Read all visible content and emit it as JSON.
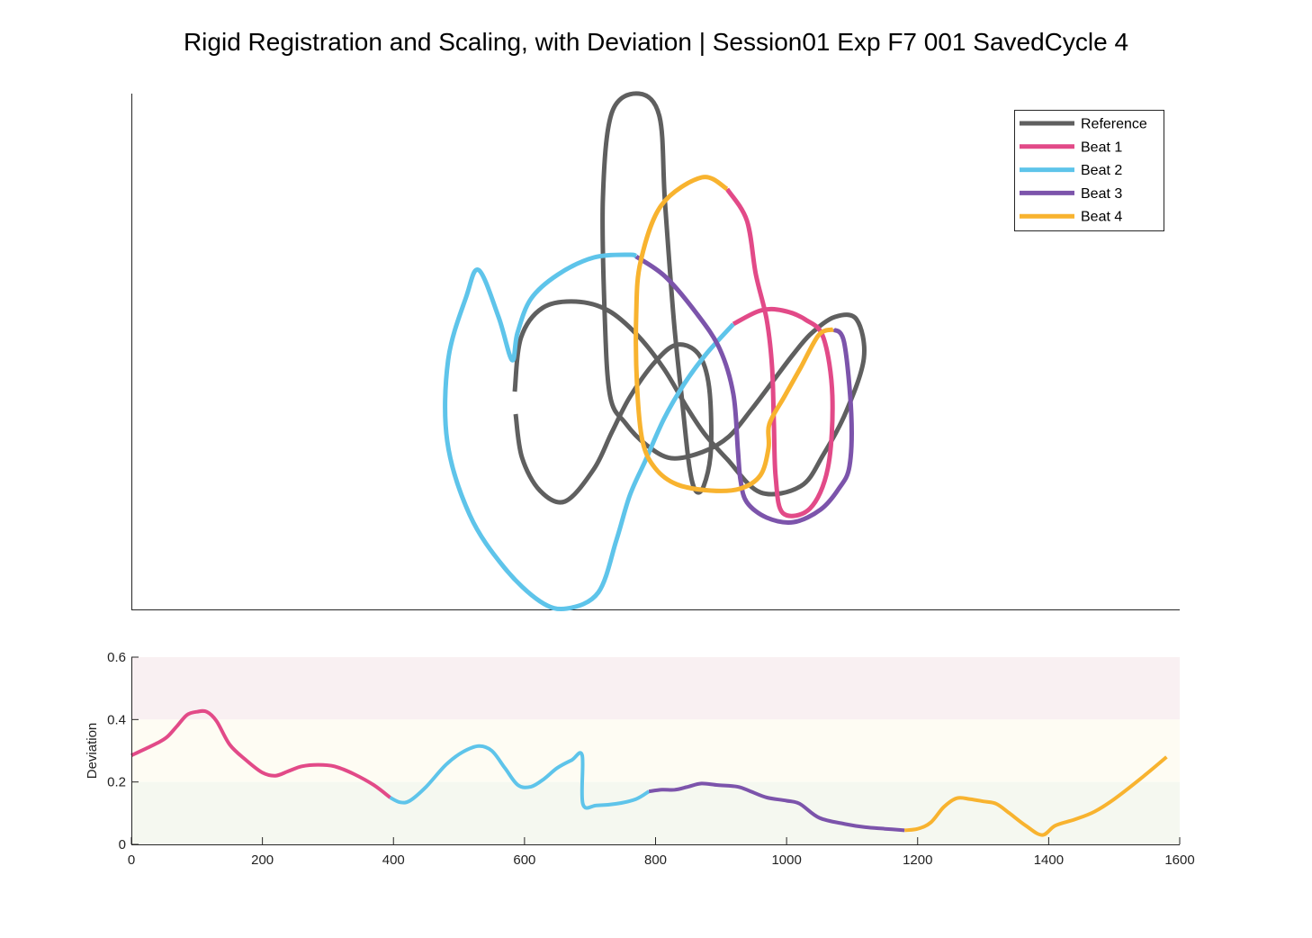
{
  "title": "Rigid Registration and Scaling, with Deviation | Session01 Exp F7 001 SavedCycle 4",
  "colors": {
    "reference": "#5f5f5f",
    "beat1": "#e24a88",
    "beat2": "#5ec4ea",
    "beat3": "#7c54ab",
    "beat4": "#f8b32f",
    "band_high": "#f9f0f2",
    "band_mid": "#fefcf3",
    "band_low": "#f5f8f0"
  },
  "chart_data": [
    {
      "type": "line",
      "panel": "trajectory",
      "title": "",
      "xlabel": "",
      "ylabel": "",
      "axes_ticks_shown": false,
      "legend": {
        "placement": "top-right",
        "entries": [
          "Reference",
          "Beat 1",
          "Beat 2",
          "Beat 3",
          "Beat 4"
        ]
      },
      "series": [
        {
          "name": "Reference",
          "points": [
            [
              572,
              435
            ],
            [
              579,
              375
            ],
            [
              603,
              342
            ],
            [
              640,
              335
            ],
            [
              676,
              345
            ],
            [
              709,
              373
            ],
            [
              738,
              410
            ],
            [
              763,
              452
            ],
            [
              783,
              482
            ],
            [
              808,
              510
            ],
            [
              845,
              547
            ],
            [
              890,
              540
            ],
            [
              915,
              505
            ],
            [
              940,
              458
            ],
            [
              960,
              398
            ],
            [
              952,
              355
            ],
            [
              928,
              352
            ],
            [
              902,
              370
            ],
            [
              882,
              393
            ],
            [
              860,
              422
            ],
            [
              835,
              455
            ],
            [
              810,
              485
            ],
            [
              781,
              502
            ],
            [
              746,
              509
            ],
            [
              718,
              494
            ],
            [
              695,
              470
            ],
            [
              678,
              440
            ],
            [
              672,
              350
            ],
            [
              670,
              220
            ],
            [
              680,
              125
            ],
            [
              710,
              104
            ],
            [
              733,
              130
            ],
            [
              739,
              225
            ],
            [
              749,
              358
            ],
            [
              758,
              445
            ],
            [
              766,
              518
            ],
            [
              773,
              545
            ],
            [
              782,
              540
            ],
            [
              790,
              500
            ],
            [
              788,
              430
            ],
            [
              776,
              393
            ],
            [
              752,
              383
            ],
            [
              728,
              402
            ],
            [
              700,
              441
            ],
            [
              680,
              480
            ],
            [
              660,
              521
            ],
            [
              628,
              557
            ],
            [
              600,
              545
            ],
            [
              580,
              508
            ],
            [
              573,
              460
            ]
          ]
        },
        {
          "name": "Beat 1",
          "points": [
            [
              808,
              210
            ],
            [
              830,
              245
            ],
            [
              840,
              305
            ],
            [
              852,
              355
            ],
            [
              858,
              408
            ],
            [
              860,
              470
            ],
            [
              862,
              530
            ],
            [
              870,
              570
            ],
            [
              900,
              565
            ],
            [
              920,
              520
            ],
            [
              925,
              440
            ],
            [
              915,
              375
            ],
            [
              895,
              355
            ],
            [
              870,
              345
            ],
            [
              845,
              345
            ],
            [
              815,
              360
            ]
          ]
        },
        {
          "name": "Beat 2",
          "points": [
            [
              815,
              360
            ],
            [
              785,
              393
            ],
            [
              760,
              427
            ],
            [
              738,
              465
            ],
            [
              718,
              510
            ],
            [
              700,
              550
            ],
            [
              685,
              600
            ],
            [
              665,
              658
            ],
            [
              630,
              676
            ],
            [
              600,
              668
            ],
            [
              560,
              630
            ],
            [
              522,
              572
            ],
            [
              497,
              490
            ],
            [
              498,
              400
            ],
            [
              518,
              330
            ],
            [
              532,
              300
            ],
            [
              554,
              352
            ],
            [
              569,
              400
            ],
            [
              575,
              370
            ],
            [
              590,
              332
            ],
            [
              620,
              305
            ],
            [
              660,
              286
            ],
            [
              700,
              283
            ],
            [
              707,
              285
            ]
          ]
        },
        {
          "name": "Beat 3",
          "points": [
            [
              707,
              285
            ],
            [
              739,
              307
            ],
            [
              774,
              348
            ],
            [
              800,
              388
            ],
            [
              815,
              438
            ],
            [
              820,
              500
            ],
            [
              823,
              534
            ],
            [
              830,
              558
            ],
            [
              852,
              575
            ],
            [
              882,
              580
            ],
            [
              912,
              566
            ],
            [
              932,
              543
            ],
            [
              944,
              518
            ],
            [
              946,
              460
            ],
            [
              938,
              380
            ],
            [
              926,
              366
            ]
          ]
        },
        {
          "name": "Beat 4",
          "points": [
            [
              926,
              366
            ],
            [
              910,
              372
            ],
            [
              890,
              408
            ],
            [
              872,
              440
            ],
            [
              855,
              471
            ],
            [
              854,
              498
            ],
            [
              845,
              528
            ],
            [
              822,
              543
            ],
            [
              790,
              545
            ],
            [
              752,
              538
            ],
            [
              728,
              520
            ],
            [
              714,
              490
            ],
            [
              708,
              430
            ],
            [
              707,
              350
            ],
            [
              712,
              290
            ],
            [
              735,
              228
            ],
            [
              780,
              197
            ],
            [
              808,
              210
            ]
          ]
        }
      ]
    },
    {
      "type": "line",
      "panel": "deviation",
      "title": "",
      "xlabel": "",
      "ylabel": "Deviation",
      "xlim": [
        0,
        1600
      ],
      "ylim": [
        0,
        0.6
      ],
      "xticks": [
        "0",
        "200",
        "400",
        "600",
        "800",
        "1000",
        "1200",
        "1400",
        "1600"
      ],
      "yticks": [
        "0",
        "0.2",
        "0.4",
        "0.6"
      ],
      "bands": [
        {
          "from": 0.4,
          "to": 0.6
        },
        {
          "from": 0.2,
          "to": 0.4
        },
        {
          "from": 0,
          "to": 0.2
        }
      ],
      "series": [
        {
          "name": "Beat 1",
          "points": [
            [
              0,
              0.285
            ],
            [
              20,
              0.305
            ],
            [
              40,
              0.325
            ],
            [
              55,
              0.345
            ],
            [
              70,
              0.38
            ],
            [
              85,
              0.415
            ],
            [
              100,
              0.425
            ],
            [
              115,
              0.425
            ],
            [
              130,
              0.395
            ],
            [
              150,
              0.32
            ],
            [
              175,
              0.27
            ],
            [
              200,
              0.23
            ],
            [
              220,
              0.22
            ],
            [
              240,
              0.235
            ],
            [
              260,
              0.25
            ],
            [
              285,
              0.255
            ],
            [
              310,
              0.25
            ],
            [
              340,
              0.225
            ],
            [
              370,
              0.19
            ],
            [
              395,
              0.15
            ]
          ]
        },
        {
          "name": "Beat 2",
          "points": [
            [
              395,
              0.15
            ],
            [
              410,
              0.135
            ],
            [
              425,
              0.14
            ],
            [
              450,
              0.185
            ],
            [
              480,
              0.255
            ],
            [
              505,
              0.295
            ],
            [
              530,
              0.315
            ],
            [
              550,
              0.3
            ],
            [
              570,
              0.245
            ],
            [
              590,
              0.19
            ],
            [
              610,
              0.185
            ],
            [
              630,
              0.21
            ],
            [
              650,
              0.245
            ],
            [
              672,
              0.27
            ],
            [
              688,
              0.285
            ],
            [
              689,
              0.13
            ],
            [
              710,
              0.125
            ],
            [
              740,
              0.13
            ],
            [
              770,
              0.145
            ],
            [
              790,
              0.17
            ]
          ]
        },
        {
          "name": "Beat 3",
          "points": [
            [
              790,
              0.17
            ],
            [
              810,
              0.175
            ],
            [
              830,
              0.175
            ],
            [
              850,
              0.185
            ],
            [
              870,
              0.195
            ],
            [
              895,
              0.19
            ],
            [
              925,
              0.185
            ],
            [
              945,
              0.17
            ],
            [
              970,
              0.15
            ],
            [
              1000,
              0.14
            ],
            [
              1020,
              0.13
            ],
            [
              1050,
              0.085
            ],
            [
              1090,
              0.065
            ],
            [
              1120,
              0.055
            ],
            [
              1150,
              0.05
            ],
            [
              1180,
              0.045
            ]
          ]
        },
        {
          "name": "Beat 4",
          "points": [
            [
              1180,
              0.045
            ],
            [
              1200,
              0.05
            ],
            [
              1220,
              0.07
            ],
            [
              1240,
              0.12
            ],
            [
              1260,
              0.148
            ],
            [
              1280,
              0.145
            ],
            [
              1300,
              0.138
            ],
            [
              1320,
              0.13
            ],
            [
              1340,
              0.1
            ],
            [
              1365,
              0.06
            ],
            [
              1390,
              0.03
            ],
            [
              1410,
              0.06
            ],
            [
              1440,
              0.08
            ],
            [
              1470,
              0.105
            ],
            [
              1500,
              0.145
            ],
            [
              1540,
              0.21
            ],
            [
              1580,
              0.28
            ]
          ]
        }
      ]
    }
  ]
}
